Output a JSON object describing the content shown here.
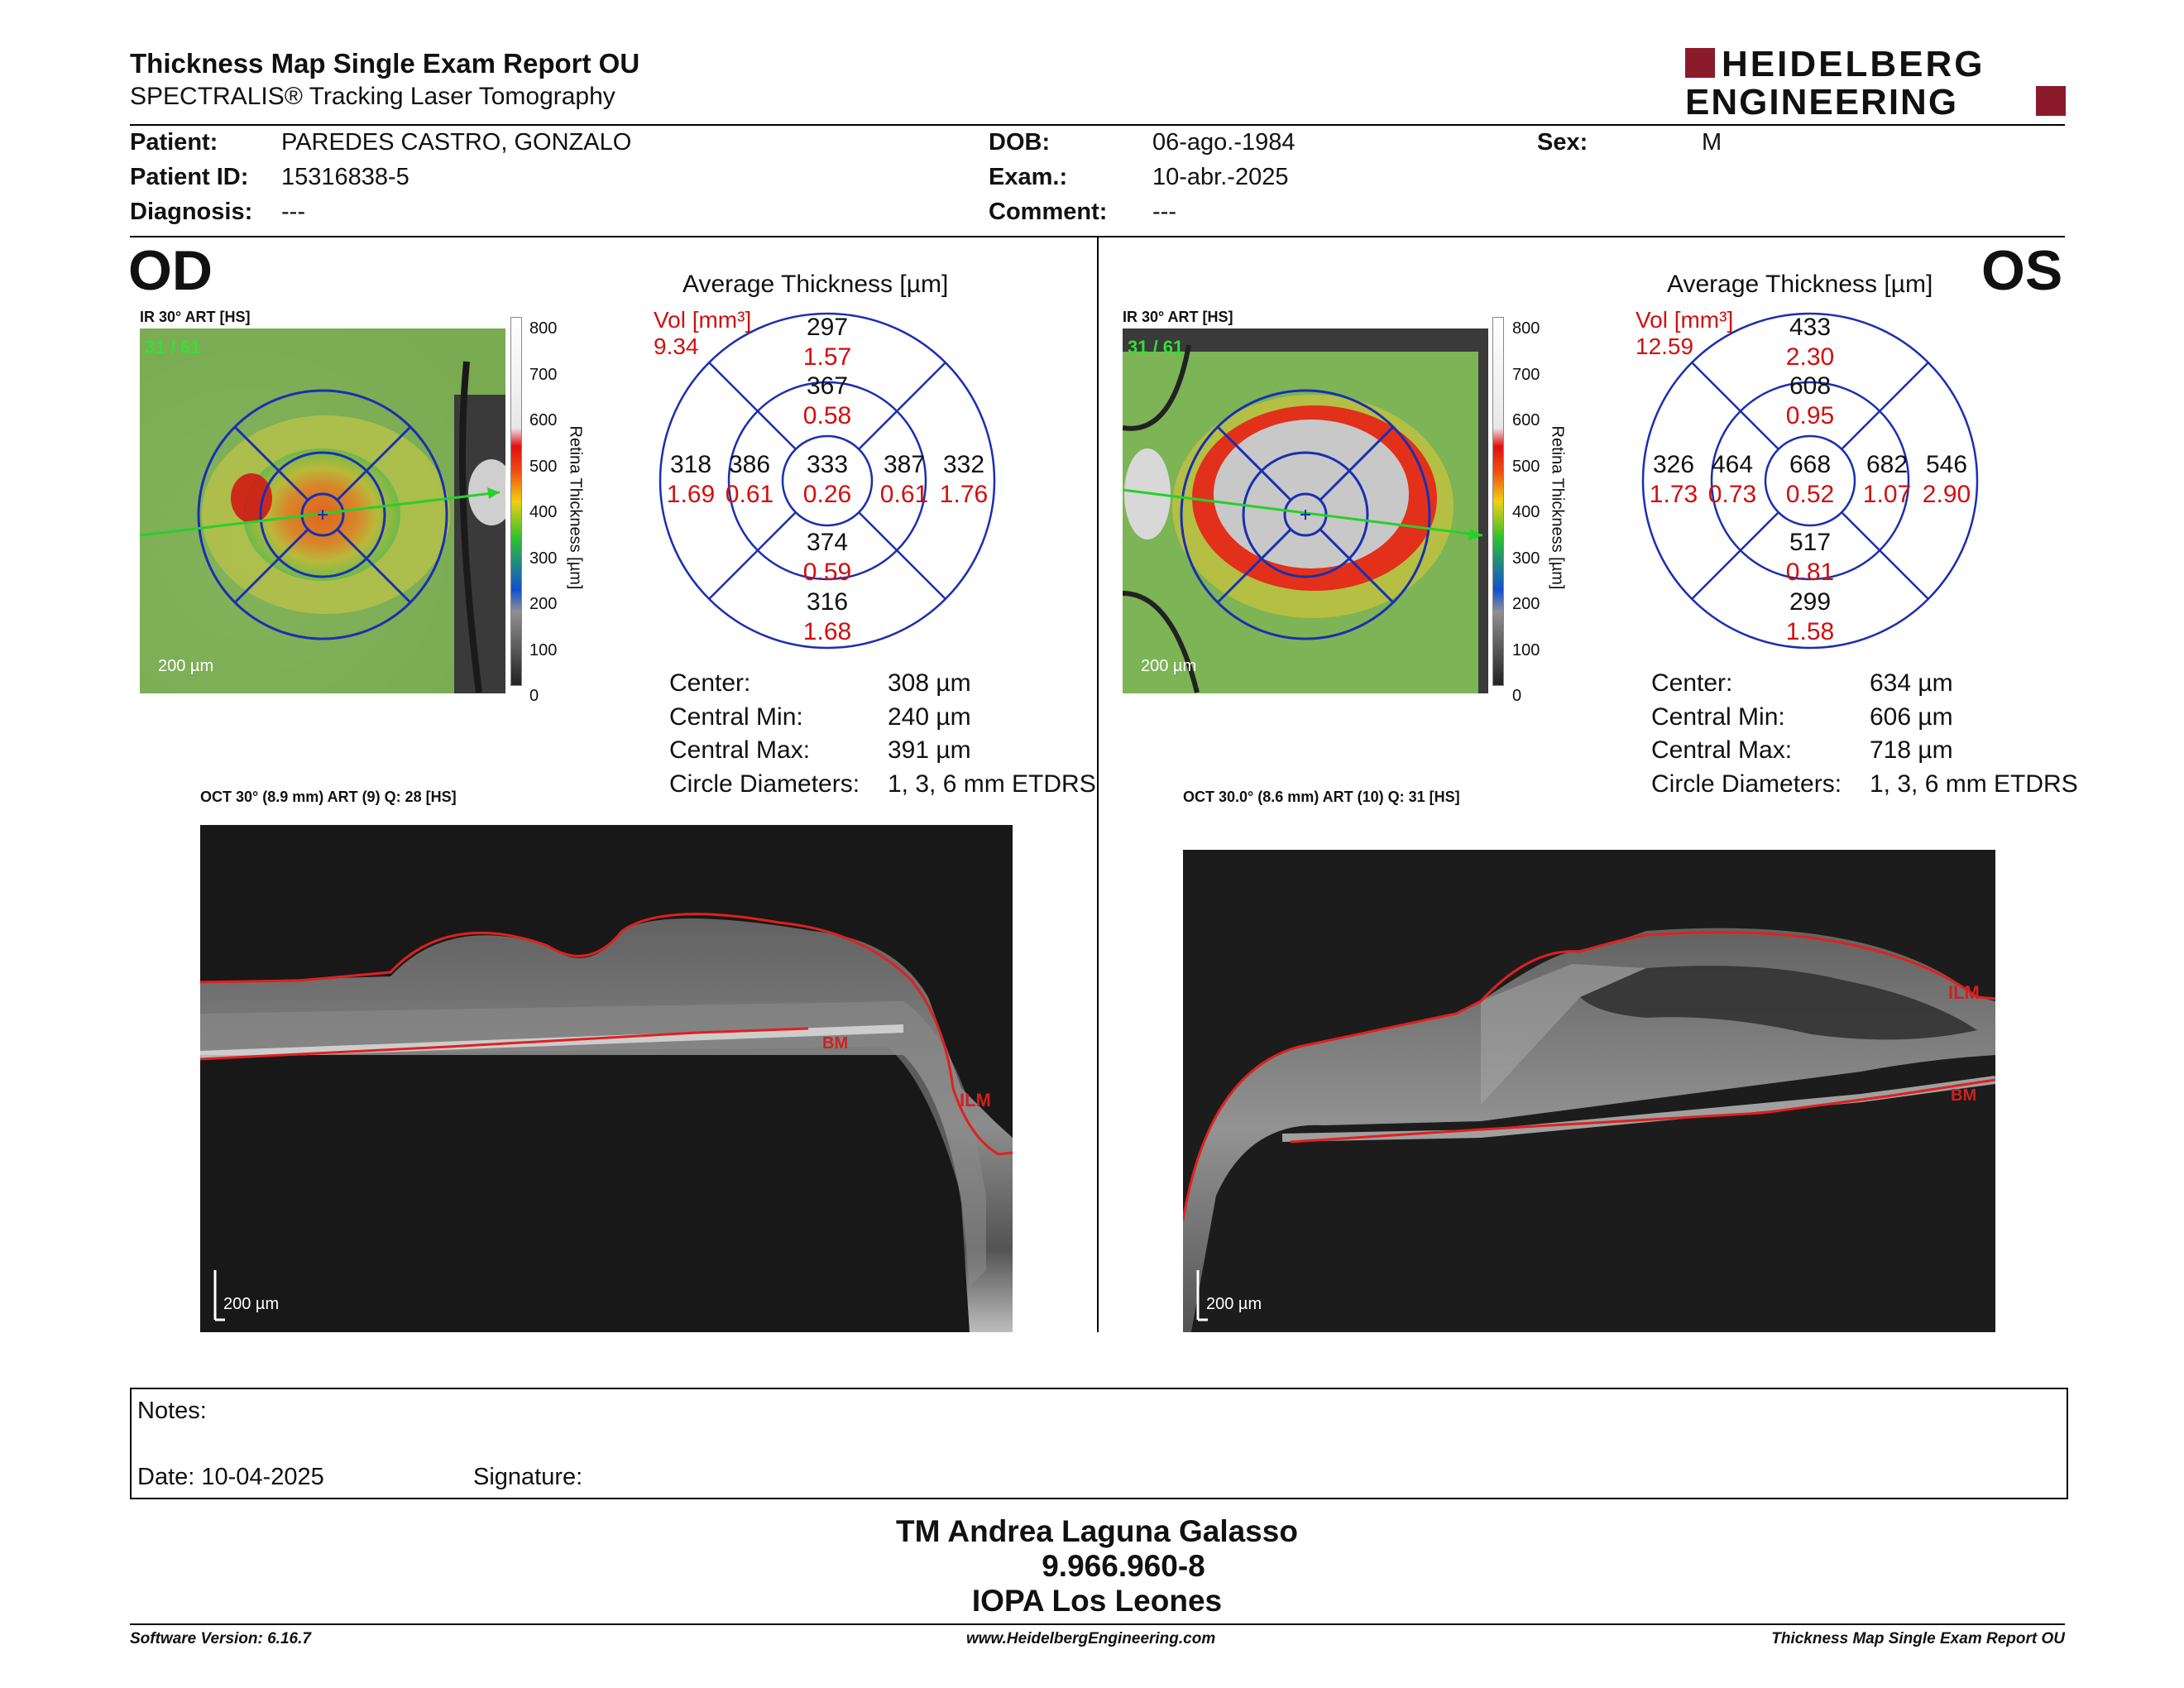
{
  "header": {
    "title": "Thickness Map Single Exam Report OU",
    "subtitle": "SPECTRALIS® Tracking Laser Tomography",
    "logo_line1": "HEIDELBERG",
    "logo_line2": "ENGINEERING",
    "brand_color": "#8b1a2b"
  },
  "patient": {
    "patient_label": "Patient:",
    "patient_value": "PAREDES CASTRO, GONZALO",
    "id_label": "Patient ID:",
    "id_value": "15316838-5",
    "diagnosis_label": "Diagnosis:",
    "diagnosis_value": "---",
    "dob_label": "DOB:",
    "dob_value": "06-ago.-1984",
    "exam_label": "Exam.:",
    "exam_value": "10-abr.-2025",
    "comment_label": "Comment:",
    "comment_value": "---",
    "sex_label": "Sex:",
    "sex_value": "M"
  },
  "od": {
    "eye_label": "OD",
    "ir_label": "IR 30° ART [HS]",
    "frame": "31 / 61",
    "scale": "200 µm",
    "colorbar_ticks": [
      "800",
      "700",
      "600",
      "500",
      "400",
      "300",
      "200",
      "100",
      "0"
    ],
    "colorbar_title": "Retina Thickness [µm]",
    "avg_title": "Average Thickness [µm]",
    "vol_label": "Vol [mm³]",
    "vol_value": "9.34",
    "etdrs": {
      "outer_top": {
        "t": "297",
        "v": "1.57"
      },
      "inner_top": {
        "t": "367",
        "v": "0.58"
      },
      "outer_left": {
        "t": "318",
        "v": "1.69"
      },
      "inner_left": {
        "t": "386",
        "v": "0.61"
      },
      "center": {
        "t": "333",
        "v": "0.26"
      },
      "inner_right": {
        "t": "387",
        "v": "0.61"
      },
      "outer_right": {
        "t": "332",
        "v": "1.76"
      },
      "inner_bottom": {
        "t": "374",
        "v": "0.59"
      },
      "outer_bottom": {
        "t": "316",
        "v": "1.68"
      }
    },
    "stats": {
      "center_label": "Center:",
      "center_value": "308 µm",
      "min_label": "Central Min:",
      "min_value": "240 µm",
      "max_label": "Central Max:",
      "max_value": "391 µm",
      "diam_label": "Circle Diameters:",
      "diam_value": "1, 3, 6 mm ETDRS"
    },
    "oct_label": "OCT 30° (8.9 mm) ART (9) Q: 28 [HS]",
    "oct_scale": "200 µm",
    "bm": "BM",
    "ilm": "ILM"
  },
  "os": {
    "eye_label": "OS",
    "ir_label": "IR 30° ART [HS]",
    "frame": "31 / 61",
    "scale": "200 µm",
    "colorbar_ticks": [
      "800",
      "700",
      "600",
      "500",
      "400",
      "300",
      "200",
      "100",
      "0"
    ],
    "colorbar_title": "Retina Thickness [µm]",
    "avg_title": "Average Thickness [µm]",
    "vol_label": "Vol [mm³]",
    "vol_value": "12.59",
    "etdrs": {
      "outer_top": {
        "t": "433",
        "v": "2.30"
      },
      "inner_top": {
        "t": "608",
        "v": "0.95"
      },
      "outer_left": {
        "t": "326",
        "v": "1.73"
      },
      "inner_left": {
        "t": "464",
        "v": "0.73"
      },
      "center": {
        "t": "668",
        "v": "0.52"
      },
      "inner_right": {
        "t": "682",
        "v": "1.07"
      },
      "outer_right": {
        "t": "546",
        "v": "2.90"
      },
      "inner_bottom": {
        "t": "517",
        "v": "0.81"
      },
      "outer_bottom": {
        "t": "299",
        "v": "1.58"
      }
    },
    "stats": {
      "center_label": "Center:",
      "center_value": "634 µm",
      "min_label": "Central Min:",
      "min_value": "606 µm",
      "max_label": "Central Max:",
      "max_value": "718 µm",
      "diam_label": "Circle Diameters:",
      "diam_value": "1, 3, 6 mm ETDRS"
    },
    "oct_label": "OCT 30.0° (8.6 mm) ART (10) Q: 31 [HS]",
    "oct_scale": "200 µm",
    "bm": "BM",
    "ilm": "ILM"
  },
  "notes": {
    "notes_label": "Notes:",
    "date_label": "Date: 10-04-2025",
    "signature_label": "Signature:"
  },
  "signature_block": {
    "name": "TM Andrea Laguna Galasso",
    "id": "9.966.960-8",
    "place": "IOPA Los Leones"
  },
  "footer": {
    "software": "Software Version: 6.16.7",
    "url": "www.HeidelbergEngineering.com",
    "report": "Thickness Map Single Exam Report OU"
  }
}
